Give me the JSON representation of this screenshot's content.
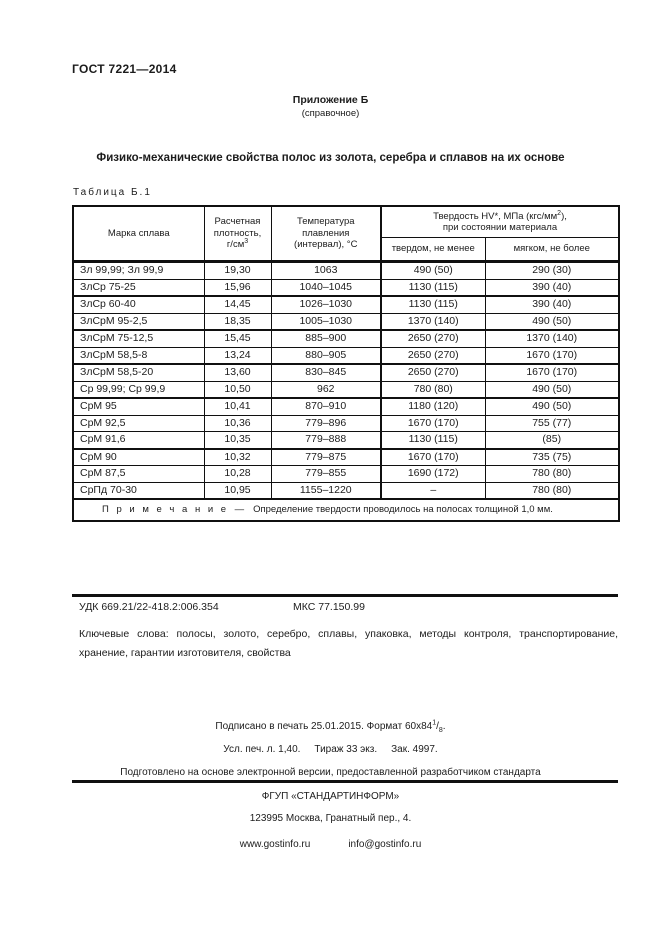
{
  "header": {
    "doc_number": "ГОСТ 7221—2014",
    "appendix_title": "Приложение Б",
    "appendix_subtitle": "(справочное)",
    "section_title": "Физико-механические свойства полос из золота, серебра и сплавов на их основе"
  },
  "table": {
    "label": "Таблица Б.1",
    "headers": {
      "alloy": "Марка сплава",
      "density_l1": "Расчетная",
      "density_l2": "плотность,",
      "density_unit": "г/см",
      "density_sup": "3",
      "temp_l1": "Температура плавления",
      "temp_l2": "(интервал), °С",
      "hardness_l1a": "Твердость HV*, МПа (кгс/мм",
      "hardness_sup": "2",
      "hardness_l1b": "),",
      "hardness_l2": "при состоянии материала",
      "sub_hard": "твердом, не менее",
      "sub_soft": "мягком, не более"
    },
    "rows": [
      {
        "cells": [
          "Зл 99,99; Зл 99,9",
          "19,30",
          "1063",
          "490 (50)",
          "290 (30)"
        ],
        "thick_bottom": false
      },
      {
        "cells": [
          "ЗлСр 75-25",
          "15,96",
          "1040–1045",
          "1130 (115)",
          "390 (40)"
        ],
        "thick_bottom": true
      },
      {
        "cells": [
          "ЗлСр 60-40",
          "14,45",
          "1026–1030",
          "1130 (115)",
          "390 (40)"
        ],
        "thick_bottom": false
      },
      {
        "cells": [
          "ЗлСрМ 95-2,5",
          "18,35",
          "1005–1030",
          "1370 (140)",
          "490 (50)"
        ],
        "thick_bottom": true
      },
      {
        "cells": [
          "ЗлСрМ 75-12,5",
          "15,45",
          "885–900",
          "2650 (270)",
          "1370 (140)"
        ],
        "thick_bottom": false
      },
      {
        "cells": [
          "ЗлСрМ 58,5-8",
          "13,24",
          "880–905",
          "2650 (270)",
          "1670 (170)"
        ],
        "thick_bottom": true
      },
      {
        "cells": [
          "ЗлСрМ 58,5-20",
          "13,60",
          "830–845",
          "2650 (270)",
          "1670 (170)"
        ],
        "thick_bottom": false
      },
      {
        "cells": [
          "Ср 99,99; Ср 99,9",
          "10,50",
          "962",
          "780 (80)",
          "490 (50)"
        ],
        "thick_bottom": true
      },
      {
        "cells": [
          "СрМ 95",
          "10,41",
          "870–910",
          "1180 (120)",
          "490 (50)"
        ],
        "thick_bottom": false
      },
      {
        "cells": [
          "СрМ 92,5",
          "10,36",
          "779–896",
          "1670 (170)",
          "755 (77)"
        ],
        "thick_bottom": false
      },
      {
        "cells": [
          "СрМ 91,6",
          "10,35",
          "779–888",
          "1130 (115)",
          "(85)"
        ],
        "thick_bottom": true
      },
      {
        "cells": [
          "СрМ 90",
          "10,32",
          "779–875",
          "1670 (170)",
          "735 (75)"
        ],
        "thick_bottom": false
      },
      {
        "cells": [
          "СрМ 87,5",
          "10,28",
          "779–855",
          "1690 (172)",
          "780 (80)"
        ],
        "thick_bottom": false
      },
      {
        "cells": [
          "СрПд 70-30",
          "10,95",
          "1155–1220",
          "–",
          "780 (80)"
        ],
        "thick_bottom": false
      }
    ],
    "note_label": "П р и м е ч а н и е",
    "note_dash": "—",
    "note_text": "Определение твердости проводилось на полосах толщиной 1,0 мм."
  },
  "codes": {
    "udk": "УДК 669.21/22-418.2:006.354",
    "mks": "МКС 77.150.99",
    "keywords": "Ключевые слова: полосы, золото, серебро, сплавы, упаковка, методы контроля, транспортирование, хранение, гарантии изготовителя, свойства"
  },
  "imprint": {
    "line1_pre": "Подписано в печать 25.01.2015. Формат 60х84",
    "line1_sup": "1",
    "line1_slash": "/",
    "line1_sub": "8",
    "line1_end": ".",
    "line2_part1": "Усл. печ. л. 1,40.",
    "line2_part2": "Тираж 33 экз.",
    "line2_part3": "Зак. 4997.",
    "line3": "Подготовлено на основе электронной версии, предоставленной разработчиком стандарта"
  },
  "publisher": {
    "name": "ФГУП «СТАНДАРТИНФОРМ»",
    "address": "123995 Москва, Гранатный пер., 4.",
    "website": "www.gostinfo.ru",
    "email": "info@gostinfo.ru"
  },
  "colors": {
    "text": "#1c1c1c",
    "border": "#101010",
    "background": "#ffffff"
  }
}
